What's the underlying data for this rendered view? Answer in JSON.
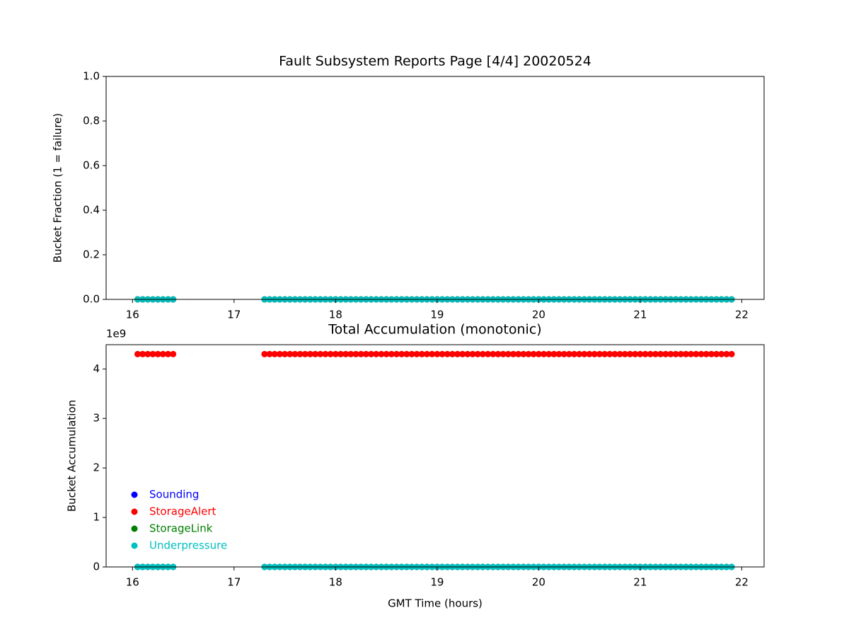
{
  "chart_data": [
    {
      "type": "scatter",
      "title": "Fault Subsystem Reports Page [4/4] 20020524",
      "y_label": "Bucket Fraction (1 = failure)",
      "xlim": [
        15.74,
        22.22
      ],
      "xticks": [
        16,
        17,
        18,
        19,
        20,
        21,
        22
      ],
      "ylim": [
        0,
        1
      ],
      "yticks": [
        {
          "value": 0,
          "label": "0.0"
        },
        {
          "value": 0.2,
          "label": "0.2"
        },
        {
          "value": 0.4,
          "label": "0.4"
        },
        {
          "value": 0.6,
          "label": "0.6"
        },
        {
          "value": 0.8,
          "label": "0.8"
        },
        {
          "value": 1,
          "label": "1.0"
        }
      ],
      "x": [
        16.05,
        16.1,
        16.15,
        16.2,
        16.25,
        16.3,
        16.35,
        16.4,
        17.3,
        17.35,
        17.4,
        17.45,
        17.5,
        17.55,
        17.6,
        17.65,
        17.7,
        17.75,
        17.8,
        17.85,
        17.9,
        17.95,
        18,
        18.05,
        18.1,
        18.15,
        18.2,
        18.25,
        18.3,
        18.35,
        18.4,
        18.45,
        18.5,
        18.55,
        18.6,
        18.65,
        18.7,
        18.75,
        18.8,
        18.85,
        18.9,
        18.95,
        19,
        19.05,
        19.1,
        19.15,
        19.2,
        19.25,
        19.3,
        19.35,
        19.4,
        19.45,
        19.5,
        19.55,
        19.6,
        19.65,
        19.7,
        19.75,
        19.8,
        19.85,
        19.9,
        19.95,
        20,
        20.05,
        20.1,
        20.15,
        20.2,
        20.25,
        20.3,
        20.35,
        20.4,
        20.45,
        20.5,
        20.55,
        20.6,
        20.65,
        20.7,
        20.75,
        20.8,
        20.85,
        20.9,
        20.95,
        21,
        21.05,
        21.1,
        21.15,
        21.2,
        21.25,
        21.3,
        21.35,
        21.4,
        21.45,
        21.5,
        21.55,
        21.6,
        21.65,
        21.7,
        21.75,
        21.8,
        21.85,
        21.9
      ],
      "series": [
        {
          "color": "#0000ff",
          "values": [
            0,
            0,
            0,
            0,
            0,
            0,
            0,
            0,
            0,
            0,
            0,
            0,
            0,
            0,
            0,
            0,
            0,
            0,
            0,
            0,
            0,
            0,
            0,
            0,
            0,
            0,
            0,
            0,
            0,
            0,
            0,
            0,
            0,
            0,
            0,
            0,
            0,
            0,
            0,
            0,
            0,
            0,
            0,
            0,
            0,
            0,
            0,
            0,
            0,
            0,
            0,
            0,
            0,
            0,
            0,
            0,
            0,
            0,
            0,
            0,
            0,
            0,
            0,
            0,
            0,
            0,
            0,
            0,
            0,
            0,
            0,
            0,
            0,
            0,
            0,
            0,
            0,
            0,
            0,
            0,
            0,
            0,
            0,
            0,
            0,
            0,
            0,
            0,
            0,
            0,
            0,
            0,
            0,
            0,
            0,
            0,
            0,
            0,
            0,
            0,
            0
          ]
        },
        {
          "color": "#ff0000",
          "values": [
            0,
            0,
            0,
            0,
            0,
            0,
            0,
            0,
            0,
            0,
            0,
            0,
            0,
            0,
            0,
            0,
            0,
            0,
            0,
            0,
            0,
            0,
            0,
            0,
            0,
            0,
            0,
            0,
            0,
            0,
            0,
            0,
            0,
            0,
            0,
            0,
            0,
            0,
            0,
            0,
            0,
            0,
            0,
            0,
            0,
            0,
            0,
            0,
            0,
            0,
            0,
            0,
            0,
            0,
            0,
            0,
            0,
            0,
            0,
            0,
            0,
            0,
            0,
            0,
            0,
            0,
            0,
            0,
            0,
            0,
            0,
            0,
            0,
            0,
            0,
            0,
            0,
            0,
            0,
            0,
            0,
            0,
            0,
            0,
            0,
            0,
            0,
            0,
            0,
            0,
            0,
            0,
            0,
            0,
            0,
            0,
            0,
            0,
            0,
            0,
            0
          ]
        },
        {
          "color": "#008000",
          "values": [
            0,
            0,
            0,
            0,
            0,
            0,
            0,
            0,
            0,
            0,
            0,
            0,
            0,
            0,
            0,
            0,
            0,
            0,
            0,
            0,
            0,
            0,
            0,
            0,
            0,
            0,
            0,
            0,
            0,
            0,
            0,
            0,
            0,
            0,
            0,
            0,
            0,
            0,
            0,
            0,
            0,
            0,
            0,
            0,
            0,
            0,
            0,
            0,
            0,
            0,
            0,
            0,
            0,
            0,
            0,
            0,
            0,
            0,
            0,
            0,
            0,
            0,
            0,
            0,
            0,
            0,
            0,
            0,
            0,
            0,
            0,
            0,
            0,
            0,
            0,
            0,
            0,
            0,
            0,
            0,
            0,
            0,
            0,
            0,
            0,
            0,
            0,
            0,
            0,
            0,
            0,
            0,
            0,
            0,
            0,
            0,
            0,
            0,
            0,
            0,
            0
          ]
        },
        {
          "color": "#00bfbf",
          "values": [
            0,
            0,
            0,
            0,
            0,
            0,
            0,
            0,
            0,
            0,
            0,
            0,
            0,
            0,
            0,
            0,
            0,
            0,
            0,
            0,
            0,
            0,
            0,
            0,
            0,
            0,
            0,
            0,
            0,
            0,
            0,
            0,
            0,
            0,
            0,
            0,
            0,
            0,
            0,
            0,
            0,
            0,
            0,
            0,
            0,
            0,
            0,
            0,
            0,
            0,
            0,
            0,
            0,
            0,
            0,
            0,
            0,
            0,
            0,
            0,
            0,
            0,
            0,
            0,
            0,
            0,
            0,
            0,
            0,
            0,
            0,
            0,
            0,
            0,
            0,
            0,
            0,
            0,
            0,
            0,
            0,
            0,
            0,
            0,
            0,
            0,
            0,
            0,
            0,
            0,
            0,
            0,
            0,
            0,
            0,
            0,
            0,
            0,
            0,
            0,
            0
          ]
        }
      ]
    },
    {
      "type": "scatter",
      "title": "Total Accumulation (monotonic)",
      "x_label": "GMT Time (hours)",
      "y_label": "Bucket Accumulation",
      "y_offset_label": "1e9",
      "legend": "lower left",
      "xlim": [
        15.74,
        22.22
      ],
      "xticks": [
        16,
        17,
        18,
        19,
        20,
        21,
        22
      ],
      "ylim": [
        0,
        4490000000
      ],
      "yticks": [
        0,
        {
          "value": 1000000000,
          "label": "1"
        },
        {
          "value": 2000000000,
          "label": "2"
        },
        {
          "value": 3000000000,
          "label": "3"
        },
        {
          "value": 4000000000,
          "label": "4"
        }
      ],
      "x": [
        16.05,
        16.1,
        16.15,
        16.2,
        16.25,
        16.3,
        16.35,
        16.4,
        17.3,
        17.35,
        17.4,
        17.45,
        17.5,
        17.55,
        17.6,
        17.65,
        17.7,
        17.75,
        17.8,
        17.85,
        17.9,
        17.95,
        18,
        18.05,
        18.1,
        18.15,
        18.2,
        18.25,
        18.3,
        18.35,
        18.4,
        18.45,
        18.5,
        18.55,
        18.6,
        18.65,
        18.7,
        18.75,
        18.8,
        18.85,
        18.9,
        18.95,
        19,
        19.05,
        19.1,
        19.15,
        19.2,
        19.25,
        19.3,
        19.35,
        19.4,
        19.45,
        19.5,
        19.55,
        19.6,
        19.65,
        19.7,
        19.75,
        19.8,
        19.85,
        19.9,
        19.95,
        20,
        20.05,
        20.1,
        20.15,
        20.2,
        20.25,
        20.3,
        20.35,
        20.4,
        20.45,
        20.5,
        20.55,
        20.6,
        20.65,
        20.7,
        20.75,
        20.8,
        20.85,
        20.9,
        20.95,
        21,
        21.05,
        21.1,
        21.15,
        21.2,
        21.25,
        21.3,
        21.35,
        21.4,
        21.45,
        21.5,
        21.55,
        21.6,
        21.65,
        21.7,
        21.75,
        21.8,
        21.85,
        21.9
      ],
      "series": [
        {
          "name": "Sounding",
          "color": "#0000ff",
          "values": [
            0,
            0,
            0,
            0,
            0,
            0,
            0,
            0,
            0,
            0,
            0,
            0,
            0,
            0,
            0,
            0,
            0,
            0,
            0,
            0,
            0,
            0,
            0,
            0,
            0,
            0,
            0,
            0,
            0,
            0,
            0,
            0,
            0,
            0,
            0,
            0,
            0,
            0,
            0,
            0,
            0,
            0,
            0,
            0,
            0,
            0,
            0,
            0,
            0,
            0,
            0,
            0,
            0,
            0,
            0,
            0,
            0,
            0,
            0,
            0,
            0,
            0,
            0,
            0,
            0,
            0,
            0,
            0,
            0,
            0,
            0,
            0,
            0,
            0,
            0,
            0,
            0,
            0,
            0,
            0,
            0,
            0,
            0,
            0,
            0,
            0,
            0,
            0,
            0,
            0,
            0,
            0,
            0,
            0,
            0,
            0,
            0,
            0,
            0,
            0,
            0
          ]
        },
        {
          "name": "StorageAlert",
          "color": "#ff0000",
          "values": [
            4300000000,
            4300000000,
            4300000000,
            4300000000,
            4300000000,
            4300000000,
            4300000000,
            4300000000,
            4300000000,
            4300000000,
            4300000000,
            4300000000,
            4300000000,
            4300000000,
            4300000000,
            4300000000,
            4300000000,
            4300000000,
            4300000000,
            4300000000,
            4300000000,
            4300000000,
            4300000000,
            4300000000,
            4300000000,
            4300000000,
            4300000000,
            4300000000,
            4300000000,
            4300000000,
            4300000000,
            4300000000,
            4300000000,
            4300000000,
            4300000000,
            4300000000,
            4300000000,
            4300000000,
            4300000000,
            4300000000,
            4300000000,
            4300000000,
            4300000000,
            4300000000,
            4300000000,
            4300000000,
            4300000000,
            4300000000,
            4300000000,
            4300000000,
            4300000000,
            4300000000,
            4300000000,
            4300000000,
            4300000000,
            4300000000,
            4300000000,
            4300000000,
            4300000000,
            4300000000,
            4300000000,
            4300000000,
            4300000000,
            4300000000,
            4300000000,
            4300000000,
            4300000000,
            4300000000,
            4300000000,
            4300000000,
            4300000000,
            4300000000,
            4300000000,
            4300000000,
            4300000000,
            4300000000,
            4300000000,
            4300000000,
            4300000000,
            4300000000,
            4300000000,
            4300000000,
            4300000000,
            4300000000,
            4300000000,
            4300000000,
            4300000000,
            4300000000,
            4300000000,
            4300000000,
            4300000000,
            4300000000,
            4300000000,
            4300000000,
            4300000000,
            4300000000,
            4300000000,
            4300000000,
            4300000000,
            4300000000,
            4300000000
          ]
        },
        {
          "name": "StorageLink",
          "color": "#008000",
          "values": [
            0,
            0,
            0,
            0,
            0,
            0,
            0,
            0,
            0,
            0,
            0,
            0,
            0,
            0,
            0,
            0,
            0,
            0,
            0,
            0,
            0,
            0,
            0,
            0,
            0,
            0,
            0,
            0,
            0,
            0,
            0,
            0,
            0,
            0,
            0,
            0,
            0,
            0,
            0,
            0,
            0,
            0,
            0,
            0,
            0,
            0,
            0,
            0,
            0,
            0,
            0,
            0,
            0,
            0,
            0,
            0,
            0,
            0,
            0,
            0,
            0,
            0,
            0,
            0,
            0,
            0,
            0,
            0,
            0,
            0,
            0,
            0,
            0,
            0,
            0,
            0,
            0,
            0,
            0,
            0,
            0,
            0,
            0,
            0,
            0,
            0,
            0,
            0,
            0,
            0,
            0,
            0,
            0,
            0,
            0,
            0,
            0,
            0,
            0,
            0,
            0
          ]
        },
        {
          "name": "Underpressure",
          "color": "#00bfbf",
          "values": [
            0,
            0,
            0,
            0,
            0,
            0,
            0,
            0,
            0,
            0,
            0,
            0,
            0,
            0,
            0,
            0,
            0,
            0,
            0,
            0,
            0,
            0,
            0,
            0,
            0,
            0,
            0,
            0,
            0,
            0,
            0,
            0,
            0,
            0,
            0,
            0,
            0,
            0,
            0,
            0,
            0,
            0,
            0,
            0,
            0,
            0,
            0,
            0,
            0,
            0,
            0,
            0,
            0,
            0,
            0,
            0,
            0,
            0,
            0,
            0,
            0,
            0,
            0,
            0,
            0,
            0,
            0,
            0,
            0,
            0,
            0,
            0,
            0,
            0,
            0,
            0,
            0,
            0,
            0,
            0,
            0,
            0,
            0,
            0,
            0,
            0,
            0,
            0,
            0,
            0,
            0,
            0,
            0,
            0,
            0,
            0,
            0,
            0,
            0,
            0,
            0
          ]
        }
      ]
    }
  ]
}
